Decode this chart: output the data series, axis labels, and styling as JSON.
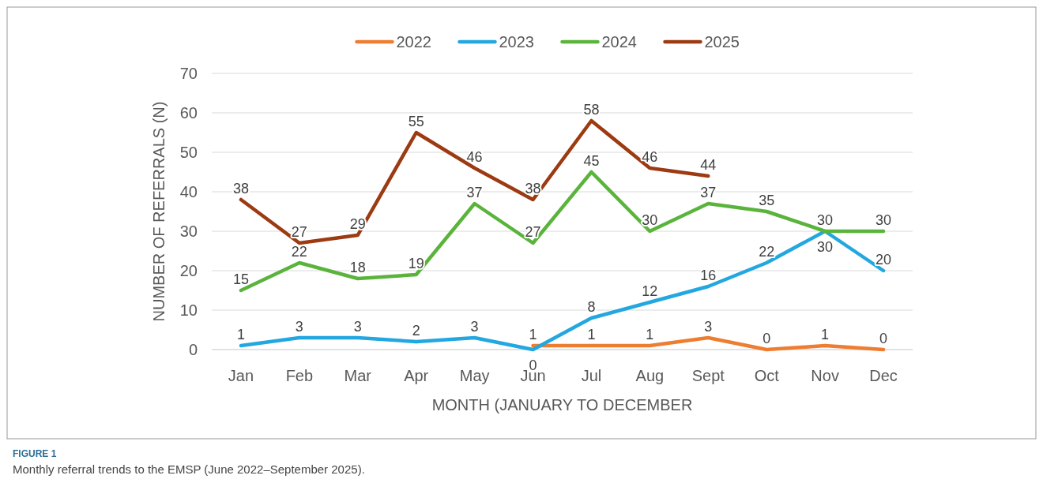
{
  "chart_data": {
    "type": "line",
    "xlabel": "MONTH (JANUARY TO DECEMBER",
    "ylabel": "NUMBER OF REFERRALS (N)",
    "categories": [
      "Jan",
      "Feb",
      "Mar",
      "Apr",
      "May",
      "Jun",
      "Jul",
      "Aug",
      "Sept",
      "Oct",
      "Nov",
      "Dec"
    ],
    "series": [
      {
        "name": "2022",
        "color": "#ed7d31",
        "values": [
          null,
          null,
          null,
          null,
          null,
          1,
          1,
          1,
          3,
          0,
          1,
          0
        ]
      },
      {
        "name": "2023",
        "color": "#22a7e0",
        "values": [
          1,
          3,
          3,
          2,
          3,
          0,
          8,
          12,
          16,
          22,
          30,
          20
        ]
      },
      {
        "name": "2024",
        "color": "#5ab43c",
        "values": [
          15,
          22,
          18,
          19,
          37,
          27,
          45,
          30,
          37,
          35,
          30,
          30
        ]
      },
      {
        "name": "2025",
        "color": "#9c3a12",
        "values": [
          38,
          27,
          29,
          55,
          46,
          38,
          58,
          46,
          44,
          null,
          null,
          null
        ]
      }
    ],
    "ylim": [
      0,
      70
    ],
    "yticks": [
      0,
      10,
      20,
      30,
      40,
      50,
      60,
      70
    ],
    "grid": true,
    "legend": "top",
    "data_labels": true,
    "marker": "none",
    "line_style": "solid",
    "annotations": [
      "FIGURE 1",
      "Monthly referral trends to the EMSP (June 2022–September 2025)."
    ]
  }
}
